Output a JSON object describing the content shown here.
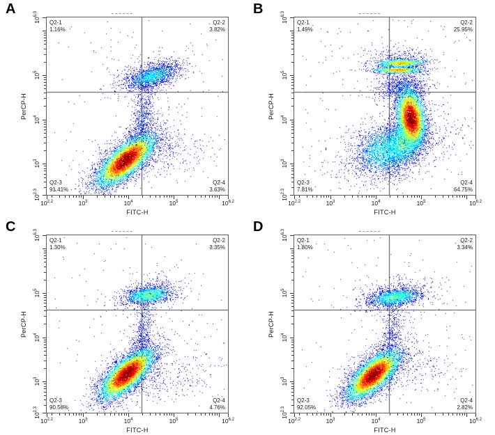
{
  "figure": {
    "axis": {
      "x_label": "FITC-H",
      "y_label": "PerCP-H",
      "x_range": [
        2.2,
        6.2
      ],
      "y_range": [
        2.3,
        6.3
      ],
      "scale": "log10",
      "x_tick_labels": [
        {
          "v": 2.2,
          "base": "10",
          "exp": "2.2"
        },
        {
          "v": 3,
          "base": "10",
          "exp": "3"
        },
        {
          "v": 4,
          "base": "10",
          "exp": "4"
        },
        {
          "v": 5,
          "base": "10",
          "exp": "5"
        },
        {
          "v": 6.2,
          "base": "10",
          "exp": "6.2"
        }
      ],
      "y_tick_labels": [
        {
          "v": 2.3,
          "base": "10",
          "exp": "2.3"
        },
        {
          "v": 3,
          "base": "10",
          "exp": "3"
        },
        {
          "v": 4,
          "base": "10",
          "exp": "4"
        },
        {
          "v": 5,
          "base": "10",
          "exp": "5"
        },
        {
          "v": 6.3,
          "base": "10",
          "exp": "6.3"
        }
      ]
    },
    "colors": {
      "gate_line": "#4a4a4a",
      "plot_border": "#5e5e5e",
      "tick": "#3a3a3a",
      "text": "#1c1c1c",
      "background": "#ffffff"
    }
  },
  "chart_data": [
    {
      "panel": "A",
      "type": "scatter",
      "subtype": "pseudocolor-density",
      "xlabel": "FITC-H",
      "ylabel": "PerCP-H",
      "xlim_log10": [
        2.2,
        6.2
      ],
      "ylim_log10": [
        2.3,
        6.3
      ],
      "gates": {
        "x": 4.3,
        "y": 4.62
      },
      "quadrants": [
        {
          "name": "Q2-1",
          "value": "1.16%",
          "corner": "tl"
        },
        {
          "name": "Q2-2",
          "value": "3.82%",
          "corner": "tr"
        },
        {
          "name": "Q2-3",
          "value": "91.41%",
          "corner": "bl"
        },
        {
          "name": "Q2-4",
          "value": "3.63%",
          "corner": "br"
        }
      ],
      "seed": 101,
      "clusters": [
        {
          "cx": 3.95,
          "cy": 3.08,
          "rx": 0.4,
          "ry": 0.155,
          "rot": 42,
          "peak": 0.92,
          "n": 6000
        },
        {
          "cx": 3.97,
          "cy": 3.1,
          "rx": 0.58,
          "ry": 0.26,
          "rot": 42,
          "peak": 0.16,
          "n": 900
        },
        {
          "cx": 4.52,
          "cy": 4.97,
          "rx": 0.3,
          "ry": 0.115,
          "rot": 18,
          "peak": 0.34,
          "n": 1500
        },
        {
          "cx": 4.5,
          "cy": 4.98,
          "rx": 0.46,
          "ry": 0.22,
          "rot": 15,
          "peak": 0.11,
          "n": 400
        },
        {
          "cx": 4.32,
          "cy": 4.05,
          "rx": 0.45,
          "ry": 0.12,
          "rot": 78,
          "peak": 0.17,
          "n": 650
        },
        {
          "cx": 4.95,
          "cy": 3.25,
          "rx": 0.5,
          "ry": 0.25,
          "rot": 5,
          "peak": 0.09,
          "n": 220
        }
      ],
      "uniform_scatter": {
        "n": 150,
        "x0": 2.35,
        "x1": 6.15,
        "y0": 2.4,
        "y1": 6.25
      }
    },
    {
      "panel": "B",
      "type": "scatter",
      "subtype": "pseudocolor-density",
      "xlabel": "FITC-H",
      "ylabel": "PerCP-H",
      "xlim_log10": [
        2.2,
        6.2
      ],
      "ylim_log10": [
        2.3,
        6.3
      ],
      "gates": {
        "x": 4.3,
        "y": 4.62
      },
      "quadrants": [
        {
          "name": "Q2-1",
          "value": "1.49%",
          "corner": "tl"
        },
        {
          "name": "Q2-2",
          "value": "25.95%",
          "corner": "tr"
        },
        {
          "name": "Q2-3",
          "value": "7.81%",
          "corner": "bl"
        },
        {
          "name": "Q2-4",
          "value": "64.75%",
          "corner": "br"
        }
      ],
      "seed": 202,
      "clusters": [
        {
          "cx": 4.78,
          "cy": 4.02,
          "rx": 0.34,
          "ry": 0.15,
          "rot": 97,
          "peak": 0.92,
          "n": 5000
        },
        {
          "cx": 4.62,
          "cy": 3.5,
          "rx": 0.3,
          "ry": 0.22,
          "rot": 65,
          "peak": 0.48,
          "n": 2400
        },
        {
          "cx": 4.2,
          "cy": 3.3,
          "rx": 0.33,
          "ry": 0.27,
          "rot": 30,
          "peak": 0.4,
          "n": 2000
        },
        {
          "cx": 4.55,
          "cy": 5.27,
          "rx": 0.27,
          "ry": 0.05,
          "rot": 2,
          "peak": 0.66,
          "n": 900
        },
        {
          "cx": 4.5,
          "cy": 5.11,
          "rx": 0.28,
          "ry": 0.038,
          "rot": 0,
          "peak": 0.7,
          "n": 800
        },
        {
          "cx": 4.6,
          "cy": 4.72,
          "rx": 0.2,
          "ry": 0.28,
          "rot": 90,
          "peak": 0.18,
          "n": 900
        },
        {
          "cx": 4.55,
          "cy": 5.38,
          "rx": 0.38,
          "ry": 0.14,
          "rot": 0,
          "peak": 0.1,
          "n": 300
        },
        {
          "cx": 3.85,
          "cy": 3.15,
          "rx": 0.42,
          "ry": 0.3,
          "rot": 20,
          "peak": 0.1,
          "n": 350
        },
        {
          "cx": 5.3,
          "cy": 3.6,
          "rx": 0.45,
          "ry": 0.35,
          "rot": 0,
          "peak": 0.07,
          "n": 200
        }
      ],
      "uniform_scatter": {
        "n": 260,
        "x0": 2.35,
        "x1": 6.15,
        "y0": 2.4,
        "y1": 6.25
      }
    },
    {
      "panel": "C",
      "type": "scatter",
      "subtype": "pseudocolor-density",
      "xlabel": "FITC-H",
      "ylabel": "PerCP-H",
      "xlim_log10": [
        2.2,
        6.2
      ],
      "ylim_log10": [
        2.3,
        6.3
      ],
      "gates": {
        "x": 4.3,
        "y": 4.62
      },
      "quadrants": [
        {
          "name": "Q2-1",
          "value": "1.30%",
          "corner": "tl"
        },
        {
          "name": "Q2-2",
          "value": "3.35%",
          "corner": "tr"
        },
        {
          "name": "Q2-3",
          "value": "90.58%",
          "corner": "bl"
        },
        {
          "name": "Q2-4",
          "value": "4.76%",
          "corner": "br"
        }
      ],
      "seed": 303,
      "clusters": [
        {
          "cx": 3.97,
          "cy": 3.17,
          "rx": 0.37,
          "ry": 0.15,
          "rot": 43,
          "peak": 0.92,
          "n": 6000
        },
        {
          "cx": 3.99,
          "cy": 3.19,
          "rx": 0.55,
          "ry": 0.25,
          "rot": 43,
          "peak": 0.15,
          "n": 800
        },
        {
          "cx": 4.45,
          "cy": 4.95,
          "rx": 0.27,
          "ry": 0.095,
          "rot": 8,
          "peak": 0.46,
          "n": 1400
        },
        {
          "cx": 4.5,
          "cy": 5.0,
          "rx": 0.42,
          "ry": 0.2,
          "rot": 10,
          "peak": 0.11,
          "n": 350
        },
        {
          "cx": 4.3,
          "cy": 4.0,
          "rx": 0.4,
          "ry": 0.11,
          "rot": 80,
          "peak": 0.15,
          "n": 480
        },
        {
          "cx": 5.0,
          "cy": 3.1,
          "rx": 0.55,
          "ry": 0.3,
          "rot": 5,
          "peak": 0.08,
          "n": 240
        }
      ],
      "uniform_scatter": {
        "n": 140,
        "x0": 2.35,
        "x1": 6.15,
        "y0": 2.4,
        "y1": 6.25
      }
    },
    {
      "panel": "D",
      "type": "scatter",
      "subtype": "pseudocolor-density",
      "xlabel": "FITC-H",
      "ylabel": "PerCP-H",
      "xlim_log10": [
        2.2,
        6.2
      ],
      "ylim_log10": [
        2.3,
        6.3
      ],
      "gates": {
        "x": 4.3,
        "y": 4.62
      },
      "quadrants": [
        {
          "name": "Q2-1",
          "value": "1.80%",
          "corner": "tl"
        },
        {
          "name": "Q2-2",
          "value": "3.34%",
          "corner": "tr"
        },
        {
          "name": "Q2-3",
          "value": "92.05%",
          "corner": "bl"
        },
        {
          "name": "Q2-4",
          "value": "2.82%",
          "corner": "br"
        }
      ],
      "seed": 404,
      "clusters": [
        {
          "cx": 3.95,
          "cy": 3.15,
          "rx": 0.36,
          "ry": 0.15,
          "rot": 43,
          "peak": 0.92,
          "n": 6000
        },
        {
          "cx": 3.97,
          "cy": 3.17,
          "rx": 0.54,
          "ry": 0.25,
          "rot": 43,
          "peak": 0.15,
          "n": 800
        },
        {
          "cx": 4.42,
          "cy": 4.9,
          "rx": 0.29,
          "ry": 0.1,
          "rot": 8,
          "peak": 0.44,
          "n": 1500
        },
        {
          "cx": 4.45,
          "cy": 4.95,
          "rx": 0.44,
          "ry": 0.2,
          "rot": 8,
          "peak": 0.11,
          "n": 400
        },
        {
          "cx": 4.35,
          "cy": 4.0,
          "rx": 0.38,
          "ry": 0.1,
          "rot": 82,
          "peak": 0.14,
          "n": 420
        },
        {
          "cx": 4.9,
          "cy": 3.3,
          "rx": 0.5,
          "ry": 0.25,
          "rot": 0,
          "peak": 0.08,
          "n": 170
        }
      ],
      "uniform_scatter": {
        "n": 150,
        "x0": 2.35,
        "x1": 6.15,
        "y0": 2.4,
        "y1": 6.25
      }
    }
  ]
}
